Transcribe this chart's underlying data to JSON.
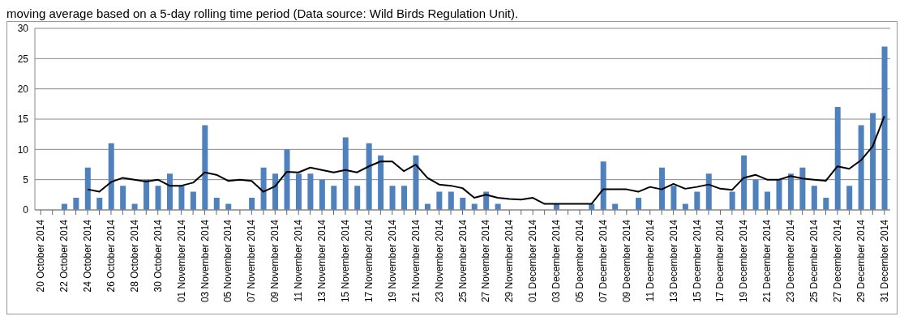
{
  "chart_data": {
    "type": "bar",
    "annotations": [
      "moving average based on a 5-day rolling time period (Data source: Wild Birds Regulation Unit)."
    ],
    "categories": [
      "20 October 2014",
      null,
      "22 October 2014",
      null,
      "24 October 2014",
      null,
      "26 October 2014",
      null,
      "28 October 2014",
      null,
      "30 October 2014",
      null,
      "01 November 2014",
      null,
      "03 November 2014",
      null,
      "05 November 2014",
      null,
      "07 November 2014",
      null,
      "09 November 2014",
      null,
      "11 November 2014",
      null,
      "13 November 2014",
      null,
      "15 November 2014",
      null,
      "17 November 2014",
      null,
      "19 November 2014",
      null,
      "21 November 2014",
      null,
      "23 November 2014",
      null,
      "25 November 2014",
      null,
      "27 November 2014",
      null,
      "29 November 2014",
      null,
      "01 December 2014",
      null,
      "03 December 2014",
      null,
      "05 December 2014",
      null,
      "07 December 2014",
      null,
      "09 December 2014",
      null,
      "11 December 2014",
      null,
      "13 December 2014",
      null,
      "15 December 2014",
      null,
      "17 December 2014",
      null,
      "19 December 2014",
      null,
      "21 December 2014",
      null,
      "23 December 2014",
      null,
      "25 December 2014",
      null,
      "27 December 2014",
      null,
      "29 December 2014",
      null,
      "31 December 2014"
    ],
    "series": [
      {
        "color": "#4f81bd",
        "values": [
          0,
          0,
          1,
          2,
          7,
          2,
          11,
          4,
          1,
          5,
          4,
          6,
          4,
          3,
          14,
          2,
          1,
          0,
          2,
          7,
          6,
          10,
          6,
          6,
          5,
          4,
          12,
          4,
          11,
          9,
          4,
          4,
          9,
          1,
          3,
          3,
          2,
          1,
          3,
          1,
          0,
          0,
          0,
          0,
          1,
          0,
          0,
          1,
          8,
          1,
          0,
          2,
          0,
          7,
          4,
          1,
          3,
          6,
          0,
          3,
          9,
          5,
          3,
          5,
          6,
          7,
          4,
          2,
          17,
          4,
          14,
          16,
          27
        ]
      },
      {
        "type": "line",
        "color": "#000000",
        "values": [
          null,
          null,
          null,
          null,
          3.4,
          3.0,
          4.6,
          5.3,
          5.0,
          4.7,
          5.0,
          4.0,
          4.0,
          4.5,
          6.2,
          5.8,
          4.8,
          5.0,
          4.8,
          3.0,
          3.9,
          6.3,
          6.2,
          7.0,
          6.6,
          6.2,
          6.6,
          6.2,
          7.2,
          8.0,
          8.0,
          6.4,
          7.5,
          5.3,
          4.2,
          4.0,
          3.6,
          2.0,
          2.5,
          2.0,
          1.8,
          1.7,
          2.0,
          1.0,
          1.0,
          1.0,
          1.0,
          1.0,
          3.4,
          3.4,
          3.4,
          3.0,
          3.8,
          3.4,
          4.3,
          3.5,
          3.8,
          4.2,
          3.5,
          3.3,
          5.3,
          5.8,
          5.0,
          5.0,
          5.6,
          5.2,
          5.0,
          4.8,
          7.2,
          6.8,
          8.2,
          10.5,
          15.5
        ]
      }
    ],
    "ylim": [
      0,
      30
    ],
    "yticks": [
      0,
      5,
      10,
      15,
      20,
      25,
      30
    ],
    "grid": "y",
    "marker": "none",
    "line_style": "solid"
  }
}
